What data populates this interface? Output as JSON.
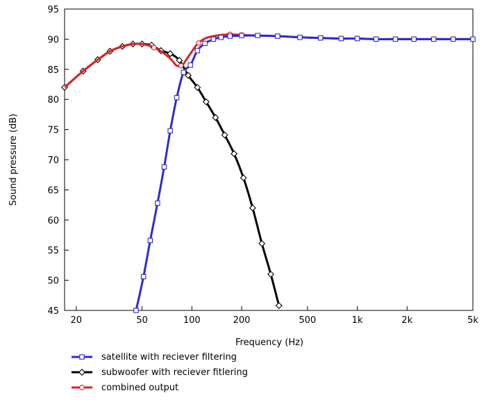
{
  "chart_data": {
    "type": "line",
    "xlabel": "Frequency  (Hz)",
    "ylabel": "Sound pressure  (dB)",
    "x_scale": "log",
    "xlim": [
      17,
      5000
    ],
    "ylim": [
      45,
      95
    ],
    "x_ticks": [
      20,
      50,
      100,
      200,
      500,
      1000,
      2000,
      5000
    ],
    "x_tick_labels": [
      "20",
      "50",
      "100",
      "200",
      "500",
      "1k",
      "2k",
      "5k"
    ],
    "y_ticks": [
      45,
      50,
      55,
      60,
      65,
      70,
      75,
      80,
      85,
      90,
      95
    ],
    "y_tick_labels": [
      "45",
      "50",
      "55",
      "60",
      "65",
      "70",
      "75",
      "80",
      "85",
      "90",
      "95"
    ],
    "grid": false,
    "legend_position": "below-left",
    "series": [
      {
        "name": "satellite with reciever filtering",
        "color": "#2a2ad8",
        "marker": "square",
        "x": [
          46,
          51,
          56,
          62,
          68,
          74,
          81,
          89,
          98,
          108,
          120,
          135,
          150,
          170,
          200,
          250,
          330,
          450,
          600,
          800,
          1000,
          1300,
          1700,
          2200,
          2900,
          3800,
          5000
        ],
        "y": [
          45,
          50.6,
          56.6,
          62.8,
          68.8,
          74.8,
          80.3,
          84.5,
          85.7,
          88.1,
          89.3,
          90.0,
          90.3,
          90.5,
          90.6,
          90.6,
          90.5,
          90.3,
          90.2,
          90.1,
          90.1,
          90.0,
          90.0,
          90.0,
          90.0,
          90.0,
          90.0
        ]
      },
      {
        "name": "subwoofer with reciever fitlering",
        "color": "#000000",
        "marker": "diamond",
        "x": [
          17,
          22,
          27,
          32,
          38,
          44,
          50,
          57,
          65,
          74,
          84,
          95,
          108,
          122,
          139,
          158,
          180,
          205,
          233,
          265,
          300,
          336
        ],
        "y": [
          82.0,
          84.7,
          86.6,
          88.0,
          88.8,
          89.2,
          89.2,
          89.0,
          88.1,
          87.6,
          86.5,
          84.0,
          82.0,
          79.6,
          77.0,
          74.1,
          71.0,
          67.0,
          62.0,
          56.1,
          51.0,
          45.8
        ]
      },
      {
        "name": "combined output",
        "color": "#dd2222",
        "marker": "circle",
        "x": [
          17,
          22,
          27,
          32,
          38,
          44,
          50,
          57,
          65,
          74,
          80,
          84,
          88,
          92,
          98,
          108,
          120,
          135,
          150,
          170,
          200,
          250,
          330,
          450,
          600,
          800,
          1000,
          1300,
          1700,
          2200,
          2900,
          3800,
          5000
        ],
        "y": [
          82.0,
          84.7,
          86.6,
          88.0,
          88.8,
          89.2,
          89.2,
          88.8,
          88.0,
          86.8,
          85.7,
          85.5,
          85.7,
          86.5,
          87.6,
          89.2,
          90.1,
          90.5,
          90.7,
          90.8,
          90.7,
          90.6,
          90.5,
          90.3,
          90.2,
          90.1,
          90.1,
          90.0,
          90.0,
          90.0,
          90.0,
          90.0,
          90.0
        ],
        "marker_x": [
          59,
          86,
          110,
          170,
          200,
          330,
          450,
          600,
          800,
          1000,
          1300,
          1700,
          2200,
          2900,
          3800,
          5000
        ]
      }
    ]
  }
}
